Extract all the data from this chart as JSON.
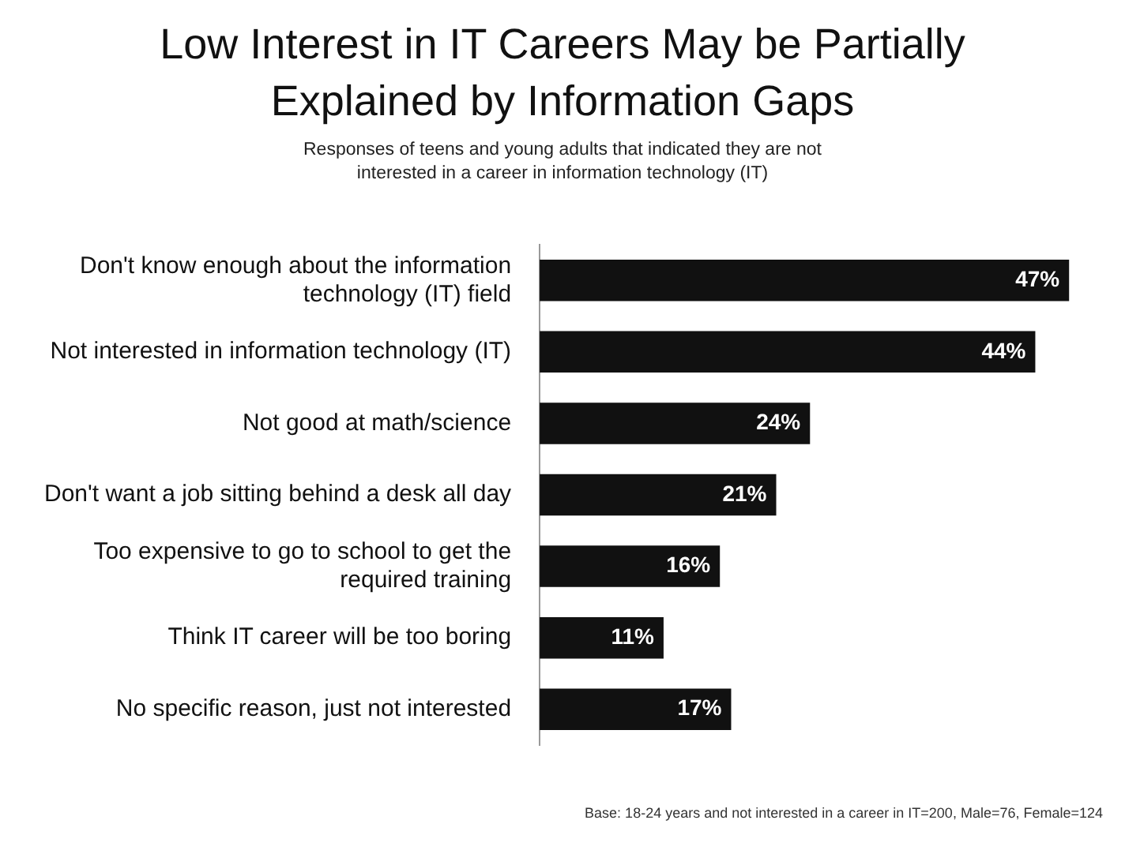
{
  "chart_data": {
    "type": "bar",
    "orientation": "horizontal",
    "title": "Low Interest in IT Careers May be Partially Explained by Information Gaps",
    "subtitle": "Responses of teens and young adults that indicated they are not interested in a career in information technology (IT)",
    "categories": [
      "Don't know enough about the information technology (IT) field",
      "Not interested in information technology (IT)",
      "Not good at math/science",
      "Don't want a job sitting behind a desk all day",
      "Too expensive to go to school to get the required training",
      "Think IT career will be too boring",
      "No specific reason, just not interested"
    ],
    "values": [
      47,
      44,
      24,
      21,
      16,
      11,
      17
    ],
    "value_labels": [
      "47%",
      "44%",
      "24%",
      "21%",
      "16%",
      "11%",
      "17%"
    ],
    "color": "#111111",
    "annotations": [
      "Base: 18-24 years and not interested in a career in IT=200, Male=76, Female=124"
    ]
  }
}
